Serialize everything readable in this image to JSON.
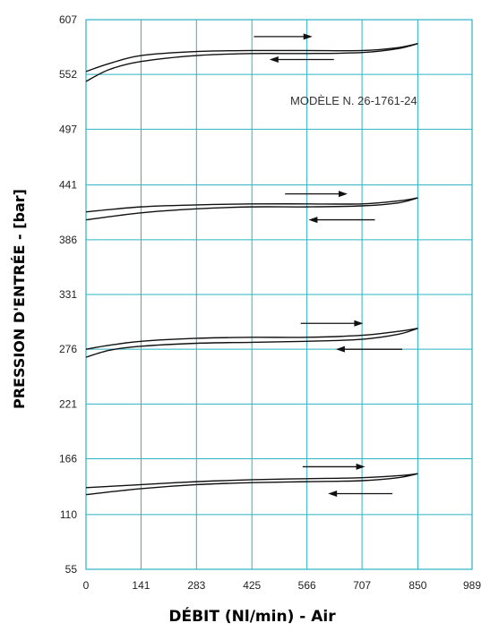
{
  "chart_data": {
    "type": "line",
    "xlabel": "DÉBIT (Nl/min) - Air",
    "ylabel": "PRESSION D'ENTRÉE - [bar]",
    "xlim": [
      0,
      989
    ],
    "ylim": [
      55,
      607
    ],
    "x_ticks": [
      "0",
      "141",
      "283",
      "425",
      "566",
      "707",
      "850",
      "989"
    ],
    "y_ticks": [
      "607",
      "552",
      "497",
      "441",
      "386",
      "331",
      "276",
      "221",
      "166",
      "110",
      "55"
    ],
    "grid": true,
    "annotation": "MODÈLE N. 26-1761-24",
    "colors": {
      "grid": "#2bb3c0",
      "curve": "#111111"
    },
    "series": [
      {
        "direction": "increasing",
        "x": [
          0,
          60,
          141,
          283,
          425,
          566,
          707,
          800,
          850
        ],
        "y": [
          555,
          563,
          571,
          575,
          576,
          576,
          576,
          579,
          583
        ]
      },
      {
        "direction": "decreasing",
        "x": [
          0,
          60,
          141,
          283,
          425,
          566,
          707,
          800,
          850
        ],
        "y": [
          545,
          557,
          565,
          571,
          573,
          573,
          574,
          578,
          583
        ]
      },
      {
        "direction": "increasing",
        "x": [
          0,
          141,
          283,
          425,
          566,
          707,
          800,
          850
        ],
        "y": [
          414,
          419,
          421,
          422,
          422,
          422,
          425,
          428
        ]
      },
      {
        "direction": "decreasing",
        "x": [
          0,
          141,
          283,
          425,
          566,
          707,
          800,
          850
        ],
        "y": [
          406,
          413,
          417,
          419,
          419,
          420,
          423,
          428
        ]
      },
      {
        "direction": "increasing",
        "x": [
          0,
          60,
          141,
          283,
          425,
          566,
          707,
          800,
          850
        ],
        "y": [
          276,
          280,
          284,
          287,
          288,
          288,
          290,
          294,
          297
        ]
      },
      {
        "direction": "decreasing",
        "x": [
          0,
          60,
          141,
          283,
          425,
          566,
          707,
          800,
          850
        ],
        "y": [
          268,
          275,
          279,
          282,
          283,
          284,
          286,
          291,
          297
        ]
      },
      {
        "direction": "increasing",
        "x": [
          0,
          141,
          283,
          425,
          566,
          707,
          800,
          850
        ],
        "y": [
          137,
          140,
          143,
          145,
          146,
          147,
          149,
          151
        ]
      },
      {
        "direction": "decreasing",
        "x": [
          0,
          141,
          283,
          425,
          566,
          707,
          800,
          850
        ],
        "y": [
          130,
          136,
          140,
          142,
          143,
          144,
          147,
          151
        ]
      }
    ],
    "arrows": [
      {
        "direction": "right",
        "x": [
          430,
          580
        ],
        "y": 590
      },
      {
        "direction": "left",
        "x": [
          470,
          635
        ],
        "y": 567
      },
      {
        "direction": "right",
        "x": [
          510,
          670
        ],
        "y": 432
      },
      {
        "direction": "left",
        "x": [
          570,
          740
        ],
        "y": 406
      },
      {
        "direction": "right",
        "x": [
          550,
          710
        ],
        "y": 302
      },
      {
        "direction": "left",
        "x": [
          640,
          810
        ],
        "y": 276
      },
      {
        "direction": "right",
        "x": [
          555,
          715
        ],
        "y": 158
      },
      {
        "direction": "left",
        "x": [
          620,
          785
        ],
        "y": 131
      }
    ]
  }
}
